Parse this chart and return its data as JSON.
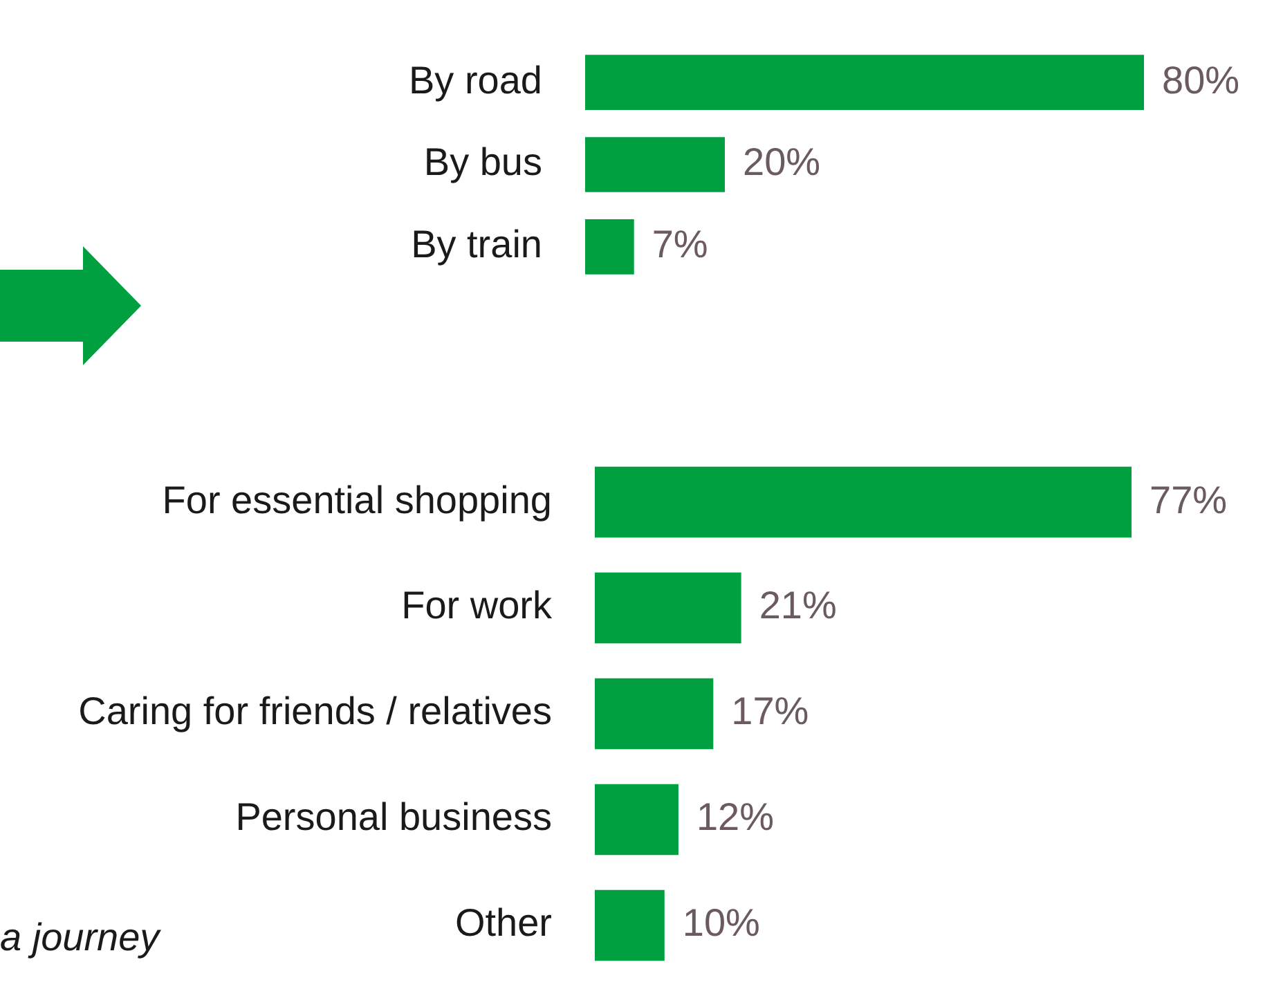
{
  "chart_data": [
    {
      "type": "bar",
      "orientation": "horizontal",
      "categories": [
        "By road",
        "By bus",
        "By train"
      ],
      "values": [
        80,
        20,
        7
      ],
      "color": "#00a040",
      "value_labels": [
        "80%",
        "20%",
        "7%"
      ],
      "tick_labels": "y"
    },
    {
      "type": "bar",
      "orientation": "horizontal",
      "categories": [
        "For essential shopping",
        "For work",
        "Caring for friends / relatives",
        "Personal business",
        "Other"
      ],
      "values": [
        77,
        21,
        17,
        12,
        10
      ],
      "color": "#00a040",
      "value_labels": [
        "77%",
        "21%",
        "17%",
        "12%",
        "10%"
      ],
      "tick_labels": "y",
      "annotations": [
        "a journey"
      ]
    }
  ]
}
